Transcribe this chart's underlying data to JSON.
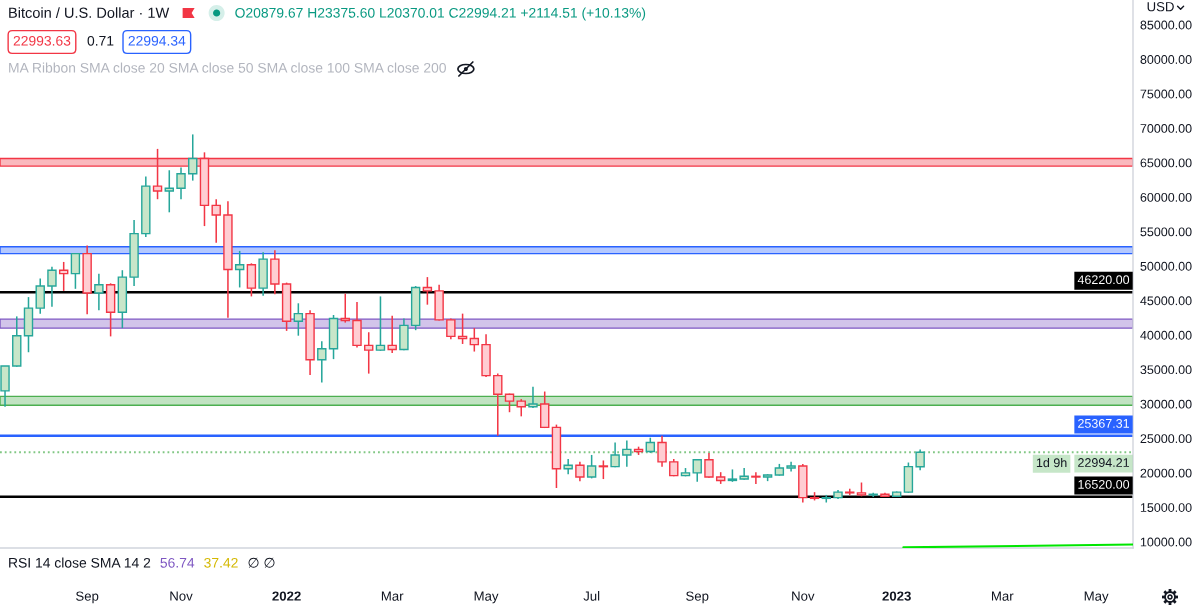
{
  "chart_data": {
    "type": "candlestick",
    "title": "Bitcoin / U.S. Dollar · 1W",
    "subtitle": "O20879.67 H23375.60 L20370.01 C22994.21 +2114.51 (+10.13%)",
    "ylabel": "USD",
    "x": [
      "2021-07-19",
      "2021-07-26",
      "2021-08-02",
      "2021-08-09",
      "2021-08-16",
      "2021-08-23",
      "2021-08-30",
      "2021-09-06",
      "2021-09-13",
      "2021-09-20",
      "2021-09-27",
      "2021-10-04",
      "2021-10-11",
      "2021-10-18",
      "2021-10-25",
      "2021-11-01",
      "2021-11-08",
      "2021-11-15",
      "2021-11-22",
      "2021-11-29",
      "2021-12-06",
      "2021-12-13",
      "2021-12-20",
      "2021-12-27",
      "2022-01-03",
      "2022-01-10",
      "2022-01-17",
      "2022-01-24",
      "2022-01-31",
      "2022-02-07",
      "2022-02-14",
      "2022-02-21",
      "2022-02-28",
      "2022-03-07",
      "2022-03-14",
      "2022-03-21",
      "2022-03-28",
      "2022-04-04",
      "2022-04-11",
      "2022-04-18",
      "2022-04-25",
      "2022-05-02",
      "2022-05-09",
      "2022-05-16",
      "2022-05-23",
      "2022-05-30",
      "2022-06-06",
      "2022-06-13",
      "2022-06-20",
      "2022-06-27",
      "2022-07-04",
      "2022-07-11",
      "2022-07-18",
      "2022-07-25",
      "2022-08-01",
      "2022-08-08",
      "2022-08-15",
      "2022-08-22",
      "2022-08-29",
      "2022-09-05",
      "2022-09-12",
      "2022-09-19",
      "2022-09-26",
      "2022-10-03",
      "2022-10-10",
      "2022-10-17",
      "2022-10-24",
      "2022-10-31",
      "2022-11-07",
      "2022-11-14",
      "2022-11-21",
      "2022-11-28",
      "2022-12-05",
      "2022-12-12",
      "2022-12-19",
      "2022-12-26",
      "2023-01-02",
      "2023-01-09",
      "2023-01-16"
    ],
    "ohlc": [
      [
        31900,
        35500,
        29600,
        35500
      ],
      [
        35500,
        42700,
        35400,
        39900
      ],
      [
        39900,
        45500,
        37500,
        43900
      ],
      [
        43900,
        48200,
        43100,
        47100
      ],
      [
        47100,
        49900,
        44100,
        49400
      ],
      [
        49400,
        50600,
        46400,
        48900
      ],
      [
        48900,
        51900,
        46700,
        51800
      ],
      [
        51800,
        53000,
        43000,
        46100
      ],
      [
        46100,
        48900,
        43600,
        47300
      ],
      [
        47300,
        47500,
        39800,
        43300
      ],
      [
        43300,
        49400,
        41000,
        48400
      ],
      [
        48400,
        56700,
        47100,
        54700
      ],
      [
        54700,
        63000,
        54200,
        61600
      ],
      [
        61600,
        67000,
        59700,
        60900
      ],
      [
        60900,
        63900,
        57800,
        61300
      ],
      [
        61300,
        64300,
        59700,
        63400
      ],
      [
        63400,
        69100,
        62400,
        65600
      ],
      [
        65600,
        66500,
        55800,
        58800
      ],
      [
        58800,
        59700,
        53400,
        57400
      ],
      [
        57400,
        59400,
        42500,
        49500
      ],
      [
        49500,
        52200,
        46900,
        50200
      ],
      [
        50200,
        50400,
        45600,
        46800
      ],
      [
        46800,
        52000,
        45700,
        51000
      ],
      [
        51000,
        52300,
        45900,
        47400
      ],
      [
        47400,
        47600,
        40600,
        42000
      ],
      [
        42000,
        44600,
        39900,
        43100
      ],
      [
        43100,
        43600,
        34200,
        36400
      ],
      [
        36400,
        39100,
        33100,
        38000
      ],
      [
        38000,
        42900,
        36500,
        42400
      ],
      [
        42400,
        46000,
        41800,
        42100
      ],
      [
        42100,
        44800,
        38200,
        38500
      ],
      [
        38500,
        40400,
        34400,
        37800
      ],
      [
        37800,
        45600,
        37700,
        38500
      ],
      [
        38500,
        42800,
        37400,
        37900
      ],
      [
        37900,
        42400,
        37800,
        41400
      ],
      [
        41400,
        47100,
        40700,
        46900
      ],
      [
        46900,
        48400,
        44400,
        46400
      ],
      [
        46400,
        47300,
        42100,
        42200
      ],
      [
        42200,
        42400,
        39400,
        39800
      ],
      [
        39800,
        43100,
        38700,
        39500
      ],
      [
        39500,
        41000,
        37600,
        38600
      ],
      [
        38600,
        40100,
        33900,
        34100
      ],
      [
        34100,
        34400,
        25400,
        31400
      ],
      [
        31400,
        31500,
        28800,
        30400
      ],
      [
        30400,
        30700,
        28200,
        29600
      ],
      [
        29600,
        32500,
        29400,
        30000
      ],
      [
        30000,
        31800,
        26500,
        26600
      ],
      [
        26600,
        27000,
        17800,
        20600
      ],
      [
        20600,
        22000,
        19800,
        21100
      ],
      [
        21100,
        21600,
        18800,
        19400
      ],
      [
        19400,
        22600,
        19200,
        21000
      ],
      [
        21000,
        21800,
        19100,
        20900
      ],
      [
        20900,
        24400,
        20800,
        22600
      ],
      [
        22600,
        24700,
        20900,
        23400
      ],
      [
        23400,
        23800,
        22600,
        23100
      ],
      [
        23100,
        25100,
        22900,
        24400
      ],
      [
        24400,
        25400,
        20900,
        21600
      ],
      [
        21600,
        22000,
        19500,
        19600
      ],
      [
        19600,
        20700,
        19500,
        20000
      ],
      [
        20000,
        22000,
        18700,
        21900
      ],
      [
        21900,
        22900,
        19300,
        19400
      ],
      [
        19400,
        20100,
        18400,
        18900
      ],
      [
        18900,
        20500,
        18700,
        19100
      ],
      [
        19100,
        20700,
        19000,
        19500
      ],
      [
        19500,
        20100,
        18400,
        19400
      ],
      [
        19400,
        19800,
        18800,
        19700
      ],
      [
        19700,
        21300,
        19600,
        20700
      ],
      [
        20700,
        21600,
        20200,
        21000
      ],
      [
        21000,
        21300,
        15700,
        16400
      ],
      [
        16400,
        17200,
        16000,
        16300
      ],
      [
        16300,
        16800,
        15700,
        16400
      ],
      [
        16400,
        17500,
        16200,
        17200
      ],
      [
        17200,
        17700,
        16800,
        17100
      ],
      [
        17100,
        18600,
        16600,
        16800
      ],
      [
        16800,
        17100,
        16500,
        16900
      ],
      [
        16900,
        17100,
        16500,
        16600
      ],
      [
        16600,
        17300,
        16500,
        17200
      ],
      [
        17200,
        21500,
        17100,
        20900
      ],
      [
        20879.67,
        23375.6,
        20370.01,
        22994.21
      ]
    ],
    "series": [
      {
        "type": "line",
        "x": [
          "2023-01-06",
          "2023-05-23"
        ],
        "values": [
          9200,
          9600
        ],
        "color": "#00e600"
      }
    ],
    "xlim": [
      "2021-07-16",
      "2023-05-23"
    ],
    "xticks": [
      {
        "value": "2021-09-06",
        "label": "Sep"
      },
      {
        "value": "2021-11-01",
        "label": "Nov"
      },
      {
        "value": "2022-01-03",
        "label": "2022"
      },
      {
        "value": "2022-03-07",
        "label": "Mar"
      },
      {
        "value": "2022-05-02",
        "label": "May"
      },
      {
        "value": "2022-07-04",
        "label": "Jul"
      },
      {
        "value": "2022-09-05",
        "label": "Sep"
      },
      {
        "value": "2022-11-07",
        "label": "Nov"
      },
      {
        "value": "2023-01-02",
        "label": "2023"
      },
      {
        "value": "2023-03-06",
        "label": "Mar"
      },
      {
        "value": "2023-05-01",
        "label": "May"
      }
    ],
    "ylim": [
      9100,
      88600
    ],
    "yticks": [
      {
        "value": 10000,
        "label": "10000.00"
      },
      {
        "value": 15000,
        "label": "15000.00"
      },
      {
        "value": 20000,
        "label": "20000.00"
      },
      {
        "value": 25000,
        "label": "25000.00"
      },
      {
        "value": 30000,
        "label": "30000.00"
      },
      {
        "value": 35000,
        "label": "35000.00"
      },
      {
        "value": 40000,
        "label": "40000.00"
      },
      {
        "value": 45000,
        "label": "45000.00"
      },
      {
        "value": 50000,
        "label": "50000.00"
      },
      {
        "value": 55000,
        "label": "55000.00"
      },
      {
        "value": 60000,
        "label": "60000.00"
      },
      {
        "value": 65000,
        "label": "65000.00"
      },
      {
        "value": 70000,
        "label": "70000.00"
      },
      {
        "value": 75000,
        "label": "75000.00"
      },
      {
        "value": 80000,
        "label": "80000.00"
      },
      {
        "value": 85000,
        "label": "85000.00"
      }
    ],
    "bands": [
      {
        "axis": "y",
        "from": 64500,
        "to": 65600,
        "color": "#f23645"
      },
      {
        "axis": "y",
        "from": 51800,
        "to": 52800,
        "color": "#2962ff"
      },
      {
        "axis": "y",
        "from": 41000,
        "to": 42300,
        "color": "#7e57c2"
      },
      {
        "axis": "y",
        "from": 29800,
        "to": 31100,
        "color": "#4caf50"
      }
    ],
    "ref_lines": [
      {
        "axis": "y",
        "value": 46220,
        "label": "46220.00",
        "color": "#000000"
      },
      {
        "axis": "y",
        "value": 25367.31,
        "label": "25367.31",
        "color": "#2962ff"
      },
      {
        "axis": "y",
        "value": 22994.21,
        "label": "22994.21",
        "color": "#81c784",
        "line_style": "dotted"
      },
      {
        "axis": "y",
        "value": 16520,
        "label": "16520.00",
        "color": "#000000"
      }
    ],
    "annotations": [
      "22993.63",
      "0.71",
      "22994.34",
      "MA Ribbon SMA close 20 SMA close 50 SMA close 100 SMA close 200",
      "1d 9h",
      "RSI 14 close SMA 14 2",
      "56.74",
      "37.42",
      "∅ ∅"
    ],
    "grid": false
  }
}
